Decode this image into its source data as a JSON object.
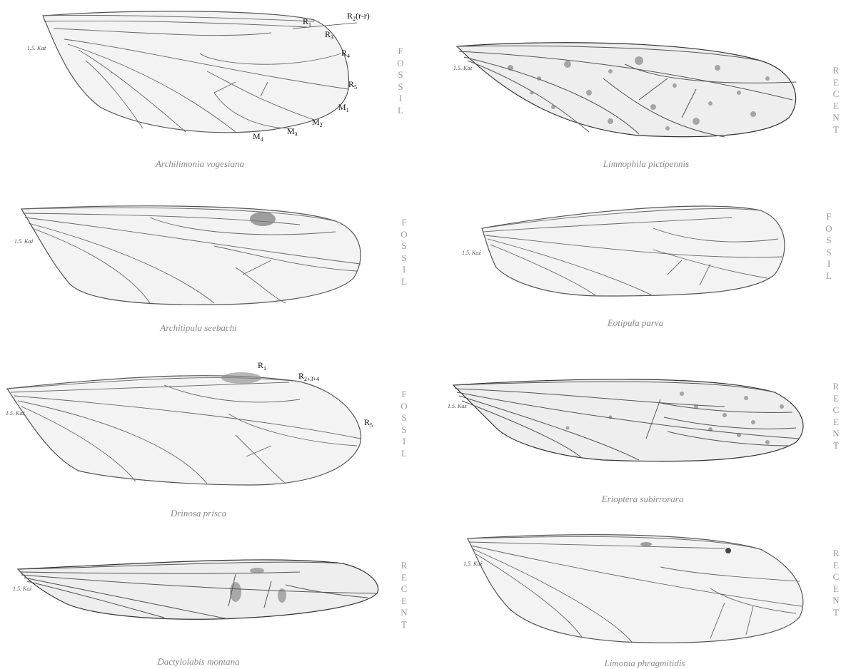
{
  "wings": [
    {
      "id": "archilimonia",
      "caption": "Archilimonia vogesiana",
      "status": "FOSSIL"
    },
    {
      "id": "limnophila",
      "caption": "Limnophila pictipennis",
      "status": "RECENT"
    },
    {
      "id": "architipula",
      "caption": "Architipula seebachi",
      "status": "FOSSIL"
    },
    {
      "id": "eotipula",
      "caption": "Eotipula parva",
      "status": "FOSSIL"
    },
    {
      "id": "drinosa",
      "caption": "Drinosa prisca",
      "status": "FOSSIL"
    },
    {
      "id": "erioptera",
      "caption": "Erioptera subirrorara",
      "status": "RECENT"
    },
    {
      "id": "dactylolabis",
      "caption": "Dactylolabis montana",
      "status": "RECENT"
    },
    {
      "id": "limonia",
      "caption": "Limonia phragmitidis",
      "status": "RECENT"
    }
  ],
  "vein_labels": {
    "archilimonia": [
      {
        "main": "R",
        "sub": "1",
        "extra": ""
      },
      {
        "main": "R",
        "sub": "2",
        "extra": "(r-r)"
      },
      {
        "main": "R",
        "sub": "3",
        "extra": ""
      },
      {
        "main": "R",
        "sub": "4",
        "extra": ""
      },
      {
        "main": "R",
        "sub": "5",
        "extra": ""
      },
      {
        "main": "M",
        "sub": "1",
        "extra": ""
      },
      {
        "main": "M",
        "sub": "2",
        "extra": ""
      },
      {
        "main": "M",
        "sub": "3",
        "extra": ""
      },
      {
        "main": "M",
        "sub": "4",
        "extra": ""
      }
    ],
    "drinosa": [
      {
        "main": "R",
        "sub": "1",
        "extra": ""
      },
      {
        "main": "R",
        "sub": "2+3+4",
        "extra": ""
      },
      {
        "main": "R",
        "sub": "5",
        "extra": ""
      }
    ]
  },
  "signature": "1.5. Kaź"
}
